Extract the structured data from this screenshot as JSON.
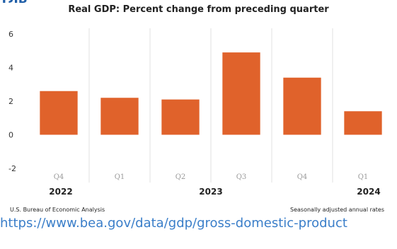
{
  "header_partial": "ТЛБ",
  "chart_data": {
    "type": "bar",
    "title": "Real GDP:  Percent change from preceding quarter",
    "categories": [
      "Q4",
      "Q1",
      "Q2",
      "Q3",
      "Q4",
      "Q1"
    ],
    "values": [
      2.6,
      2.2,
      2.1,
      4.9,
      3.4,
      1.4
    ],
    "year_groups": [
      {
        "label": "2022",
        "categories": [
          "Q4"
        ]
      },
      {
        "label": "2023",
        "categories": [
          "Q1",
          "Q2",
          "Q3",
          "Q4"
        ]
      },
      {
        "label": "2024",
        "categories": [
          "Q1"
        ]
      }
    ],
    "ylim": [
      -2,
      6
    ],
    "yticks": [
      -2,
      0,
      2,
      4,
      6
    ],
    "xlabel": "",
    "ylabel": "",
    "grid": "vertical separators",
    "legend": "none",
    "bar_color": "#e0622b",
    "source": "U.S. Bureau of Economic Analysis",
    "note": "Seasonally adjusted annual rates"
  },
  "link": "https://www.bea.gov/data/gdp/gross-domestic-product"
}
